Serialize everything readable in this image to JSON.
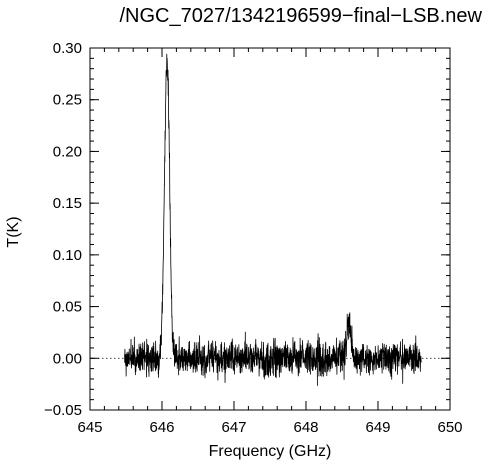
{
  "chart_data": {
    "type": "line",
    "title": "/NGC_7027/1342196599−final−LSB.new",
    "xlabel": "Frequency (GHz)",
    "ylabel": "T(K)",
    "xlim": [
      645,
      650
    ],
    "ylim": [
      -0.05,
      0.3
    ],
    "x_ticks": [
      645,
      646,
      647,
      648,
      649,
      650
    ],
    "x_tick_labels": [
      "645",
      "646",
      "647",
      "648",
      "649",
      "650"
    ],
    "y_ticks": [
      -0.05,
      0.0,
      0.05,
      0.1,
      0.15,
      0.2,
      0.25,
      0.3
    ],
    "y_tick_labels": [
      "−0.05",
      "0.00",
      "0.05",
      "0.10",
      "0.15",
      "0.20",
      "0.25",
      "0.30"
    ],
    "zero_line": {
      "y": 0.0,
      "style": "dotted"
    },
    "grid": false,
    "legend": "none",
    "series": [
      {
        "x_range": [
          645.48,
          649.6
        ],
        "noise_rms": 0.008,
        "baseline": 0.0,
        "gap": [
          646.04,
          646.16
        ],
        "features": [
          {
            "center": 646.07,
            "peak": 0.29,
            "width_ghz": 0.035
          },
          {
            "center": 648.6,
            "peak": 0.032,
            "width_ghz": 0.03
          }
        ],
        "color": "#000000"
      }
    ]
  }
}
